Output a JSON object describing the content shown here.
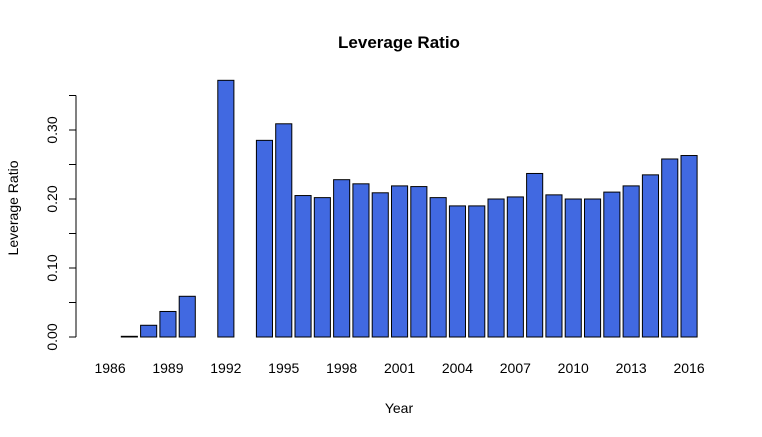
{
  "chart_data": {
    "type": "bar",
    "title": "Leverage Ratio",
    "xlabel": "Year",
    "ylabel": "Leverage Ratio",
    "categories": [
      "1986",
      "1987",
      "1988",
      "1989",
      "1990",
      "1991",
      "1992",
      "1993",
      "1994",
      "1995",
      "1996",
      "1997",
      "1998",
      "1999",
      "2000",
      "2001",
      "2002",
      "2003",
      "2004",
      "2005",
      "2006",
      "2007",
      "2008",
      "2009",
      "2010",
      "2011",
      "2012",
      "2013",
      "2014",
      "2015",
      "2016"
    ],
    "values": [
      null,
      0.001,
      0.017,
      0.037,
      0.059,
      null,
      0.372,
      null,
      0.285,
      0.309,
      0.205,
      0.202,
      0.228,
      0.222,
      0.209,
      0.219,
      0.218,
      0.202,
      0.19,
      0.19,
      0.2,
      0.203,
      0.237,
      0.206,
      0.2,
      0.2,
      0.21,
      0.219,
      0.235,
      0.258,
      0.263
    ],
    "x_tick_labels": [
      "1986",
      "1989",
      "1992",
      "1995",
      "1998",
      "2001",
      "2004",
      "2007",
      "2010",
      "2013",
      "2016"
    ],
    "y_tick_labels": [
      "0.00",
      "0.10",
      "0.20",
      "0.30"
    ],
    "y_ticks": [
      0,
      0.05,
      0.1,
      0.15,
      0.2,
      0.25,
      0.3,
      0.35
    ],
    "ylim": [
      0,
      0.372
    ],
    "bar_color": "#4169E1",
    "grid": false
  }
}
